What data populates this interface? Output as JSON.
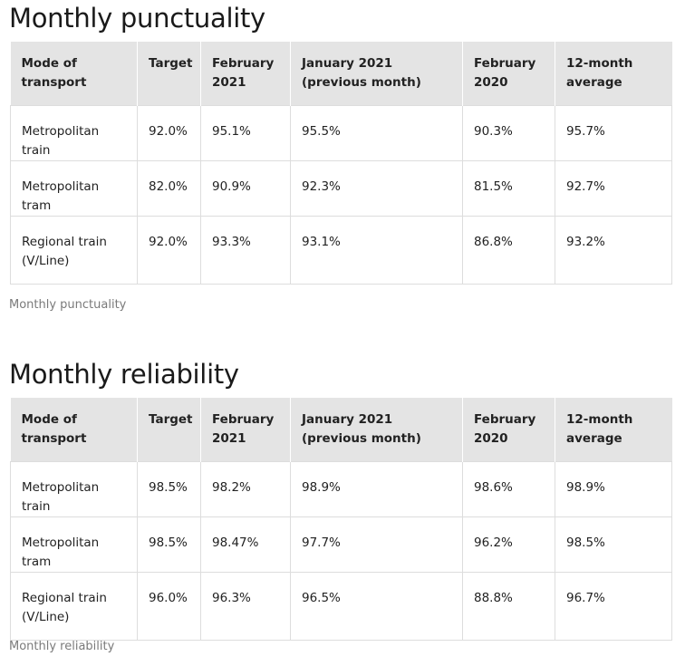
{
  "punctuality": {
    "title": "Monthly punctuality",
    "headers": [
      "Mode of transport",
      "Target",
      "February 2021",
      "January 2021 (previous month)",
      "February 2020",
      "12-month average"
    ],
    "rows": [
      [
        "Metropolitan train",
        "92.0%",
        "95.1%",
        "95.5%",
        "90.3%",
        "95.7%"
      ],
      [
        "Metropolitan tram",
        "82.0%",
        "90.9%",
        "92.3%",
        "81.5%",
        "92.7%"
      ],
      [
        "Regional train (V/Line)",
        "92.0%",
        "93.3%",
        "93.1%",
        "86.8%",
        "93.2%"
      ]
    ],
    "caption": "Monthly punctuality"
  },
  "reliability": {
    "title": "Monthly reliability",
    "headers": [
      "Mode of transport",
      "Target",
      "February 2021",
      "January 2021 (previous month)",
      "February 2020",
      "12-month average"
    ],
    "rows": [
      [
        "Metropolitan train",
        "98.5%",
        "98.2%",
        "98.9%",
        "98.6%",
        "98.9%"
      ],
      [
        "Metropolitan tram",
        "98.5%",
        "98.47%",
        "97.7%",
        "96.2%",
        "98.5%"
      ],
      [
        "Regional train (V/Line)",
        "96.0%",
        "96.3%",
        "96.5%",
        "88.8%",
        "96.7%"
      ]
    ],
    "caption": "Monthly reliability"
  }
}
